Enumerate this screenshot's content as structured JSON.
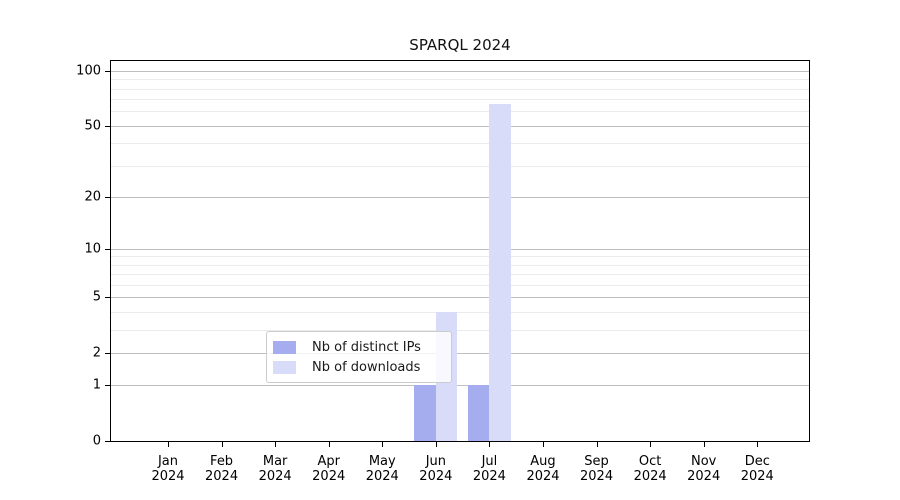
{
  "chart_data": {
    "type": "bar",
    "title": "SPARQL 2024",
    "xlabel": "",
    "ylabel": "",
    "categories": [
      "Jan",
      "Feb",
      "Mar",
      "Apr",
      "May",
      "Jun",
      "Jul",
      "Aug",
      "Sep",
      "Oct",
      "Nov",
      "Dec"
    ],
    "year_label": "2024",
    "series": [
      {
        "name": "Nb of distinct IPs",
        "color": "#a6adee",
        "values": [
          0,
          0,
          0,
          0,
          0,
          1,
          1,
          0,
          0,
          0,
          0,
          0
        ]
      },
      {
        "name": "Nb of downloads",
        "color": "#d9dcf8",
        "values": [
          0,
          0,
          0,
          0,
          0,
          4,
          66,
          0,
          0,
          0,
          0,
          0
        ]
      }
    ],
    "y_scale": "symlog",
    "y_scale_formula": "position ~ ln(1 + y)",
    "y_major_ticks": [
      0,
      1,
      2,
      5,
      10,
      20,
      50,
      100
    ],
    "y_minor_gridlines": [
      3,
      4,
      6,
      7,
      8,
      9,
      30,
      40,
      60,
      70,
      80,
      90
    ],
    "ylim": [
      0,
      113.5
    ],
    "grid": true,
    "legend_position": "lower center",
    "colors": {
      "grid_major": "#bfbfbf",
      "grid_minor": "#ebebeb",
      "spine": "#000000",
      "background": "#ffffff"
    }
  }
}
